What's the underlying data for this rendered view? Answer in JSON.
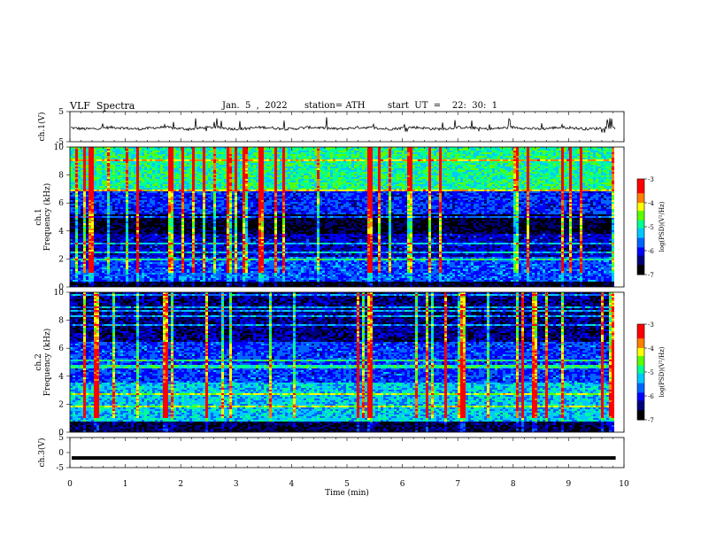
{
  "header": {
    "title": "VLF  Spectra",
    "date": "Jan.  5  ,  2022",
    "station": "station= ATH",
    "start": "start  UT  =    22:  30:  1"
  },
  "colors": {
    "trace": "#000000",
    "colormap": [
      "#000000",
      "#00007a",
      "#0000ff",
      "#0064ff",
      "#00c8ff",
      "#00ff96",
      "#5aff00",
      "#ffff00",
      "#ff8000",
      "#ff0000",
      "#ffffff"
    ]
  },
  "chart_data": [
    {
      "type": "line",
      "ylabel": "ch.1(V)",
      "ylim": [
        -5,
        5
      ],
      "yticks": [
        "5",
        "-5"
      ],
      "xlim": [
        0,
        10
      ],
      "data_end_min": 9.85,
      "description_of_signal": "noisy baseline near -0.5 V with small spikes",
      "baseline": -0.5
    },
    {
      "type": "heatmap",
      "ylabel": "ch.1\nFrequency  (kHz)",
      "ylim": [
        0,
        10
      ],
      "yticks": [
        "0",
        "2",
        "4",
        "6",
        "8",
        "10"
      ],
      "xlim": [
        0,
        10
      ],
      "data_end_min": 9.85,
      "colorbar": {
        "label": "log(PSD)(V²/Hz)",
        "range": [
          -7,
          -3
        ],
        "ticks": [
          "-3",
          "-4",
          "-5",
          "-6",
          "-7"
        ]
      }
    },
    {
      "type": "heatmap",
      "ylabel": "ch.2\nFrequency  (kHz)",
      "ylim": [
        0,
        10
      ],
      "yticks": [
        "0",
        "2",
        "4",
        "6",
        "8",
        "10"
      ],
      "xlim": [
        0,
        10
      ],
      "data_end_min": 9.85,
      "colorbar": {
        "label": "log(PSD)(V²/Hz)",
        "range": [
          -7,
          -3
        ],
        "ticks": [
          "-3",
          "-4",
          "-5",
          "-6",
          "-7"
        ]
      }
    },
    {
      "type": "line",
      "ylabel": "ch.3(V)",
      "ylim": [
        -5,
        5
      ],
      "yticks": [
        "5",
        "0",
        "-5"
      ],
      "xlim": [
        0,
        10
      ],
      "data_end_min": 9.85,
      "baseline": -1.8,
      "xlabel": "Time  (min)",
      "xticks": [
        "0",
        "1",
        "2",
        "3",
        "4",
        "5",
        "6",
        "7",
        "8",
        "9",
        "10"
      ]
    }
  ]
}
